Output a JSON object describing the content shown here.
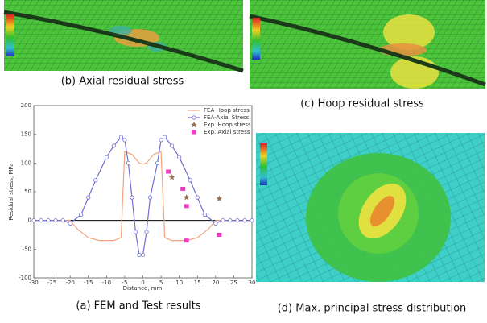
{
  "captions": {
    "b": "(b) Axial residual stress",
    "c": "(c) Hoop residual stress",
    "a": "(a) FEM and Test results",
    "d": "(d) Max. principal stress distribution"
  },
  "chart_data": {
    "type": "line",
    "xlabel": "Distance, mm",
    "ylabel": "Residual stress, MPa",
    "xlim": [
      -30,
      30
    ],
    "ylim": [
      -100,
      200
    ],
    "xticks": [
      -30,
      -25,
      -20,
      -15,
      -10,
      -5,
      0,
      5,
      10,
      15,
      20,
      25,
      30
    ],
    "yticks": [
      -100,
      -50,
      0,
      50,
      100,
      150,
      200
    ],
    "series": [
      {
        "name": "FEA-Hoop stress",
        "color": "#f2a47e",
        "line": true,
        "marker": "none",
        "x": [
          -30,
          -20,
          -18,
          -15,
          -12,
          -8,
          -6,
          -5,
          -3,
          -1,
          0,
          1,
          3,
          5,
          6,
          8,
          12,
          15,
          18,
          20,
          30
        ],
        "values": [
          0,
          0,
          -15,
          -30,
          -35,
          -35,
          -30,
          120,
          115,
          100,
          98,
          100,
          115,
          120,
          -30,
          -35,
          -35,
          -30,
          -15,
          0,
          0
        ]
      },
      {
        "name": "FEA-Axial Stress",
        "color": "#6f6fd0",
        "line": true,
        "marker": "circle",
        "x": [
          -30,
          -28,
          -26,
          -24,
          -22,
          -20,
          -17,
          -15,
          -13,
          -10,
          -8,
          -6,
          -5,
          -4,
          -3,
          -2,
          -1,
          0,
          1,
          2,
          4,
          5,
          6,
          8,
          10,
          13,
          15,
          17,
          20,
          22,
          24,
          26,
          28,
          30
        ],
        "values": [
          0,
          0,
          0,
          0,
          0,
          -5,
          10,
          40,
          70,
          110,
          130,
          145,
          140,
          100,
          40,
          -20,
          -60,
          -60,
          -20,
          40,
          100,
          140,
          145,
          130,
          110,
          70,
          40,
          10,
          -5,
          0,
          0,
          0,
          0,
          0
        ]
      },
      {
        "name": "Exp. Hoop stress",
        "color": "#9a7050",
        "line": false,
        "marker": "star",
        "x": [
          8,
          12,
          21
        ],
        "values": [
          75,
          40,
          38
        ]
      },
      {
        "name": "Exp. Axial stress",
        "color": "#f03cc0",
        "line": false,
        "marker": "square",
        "x": [
          7,
          11,
          12,
          12,
          21
        ],
        "values": [
          85,
          55,
          25,
          -35,
          -25
        ]
      }
    ]
  }
}
